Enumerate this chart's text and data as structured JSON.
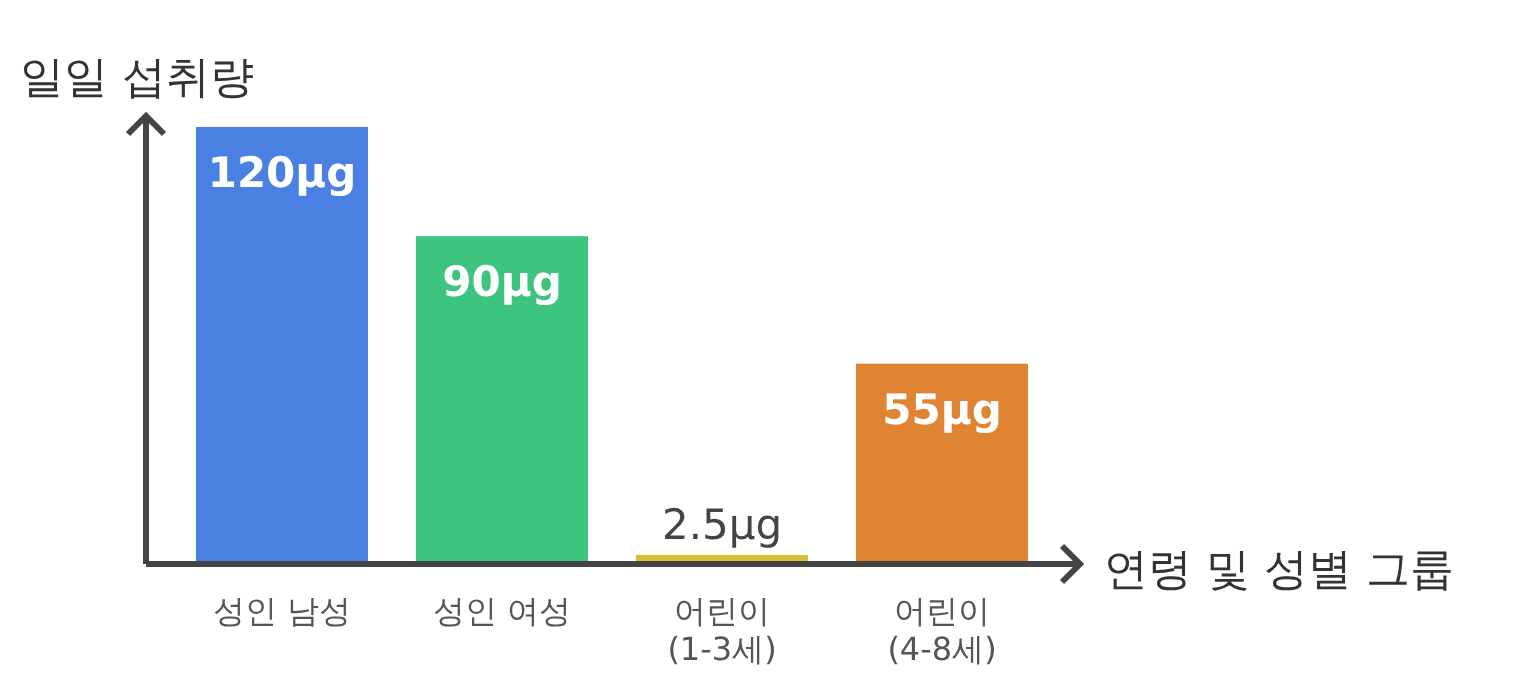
{
  "chart_data": {
    "type": "bar",
    "ylabel": "일일 섭취량",
    "xlabel": "연령 및 성별 그룹",
    "categories": [
      "성인 남성",
      "성인 여성",
      "어린이\n(1-3세)",
      "어린이\n(4-8세)"
    ],
    "values": [
      120,
      90,
      2.5,
      55
    ],
    "value_labels": [
      "120μg",
      "90μg",
      "2.5μg",
      "55μg"
    ],
    "colors": [
      "#4a80e2",
      "#3dc47e",
      "#d6c23a",
      "#de8432"
    ],
    "ylim": [
      0,
      123
    ]
  }
}
